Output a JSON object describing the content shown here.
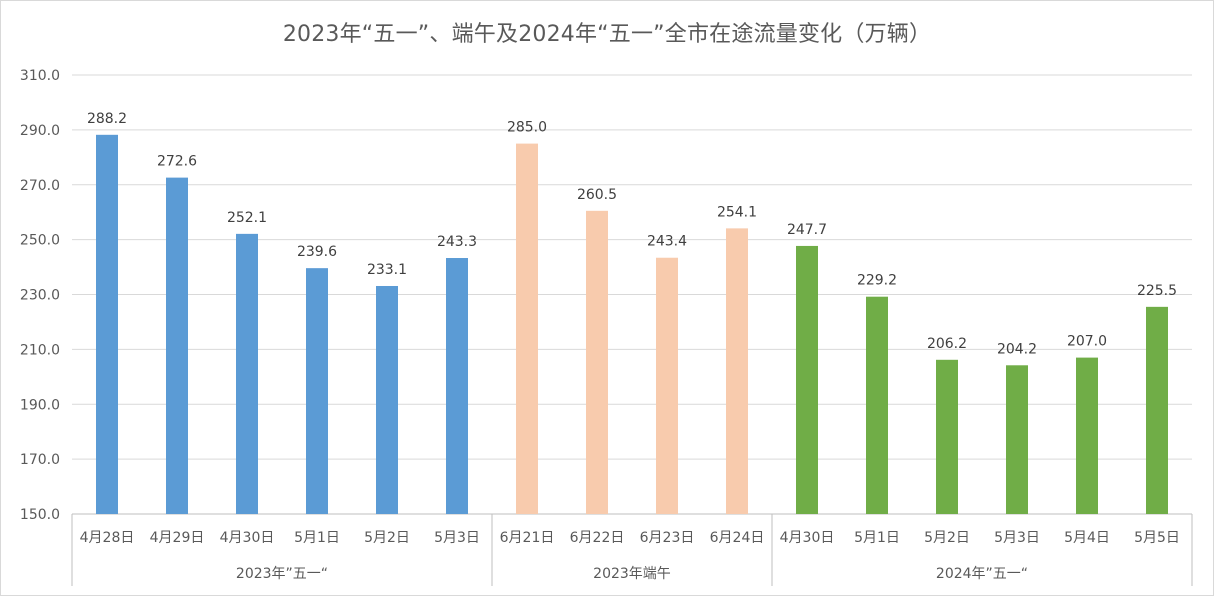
{
  "chart_data": {
    "type": "bar",
    "title": "2023年“五一”、端午及2024年“五一”全市在途流量变化（万辆）",
    "xlabel": "",
    "ylabel": "",
    "ylim": [
      150,
      310
    ],
    "yticks": [
      "150.0",
      "170.0",
      "190.0",
      "210.0",
      "230.0",
      "250.0",
      "270.0",
      "290.0",
      "310.0"
    ],
    "ytick_values": [
      150,
      170,
      190,
      210,
      230,
      250,
      270,
      290,
      310
    ],
    "grid": true,
    "legend": "none",
    "groups": [
      {
        "name": "2023年”五一“",
        "color": "#5b9bd5",
        "categories": [
          "4月28日",
          "4月29日",
          "4月30日",
          "5月1日",
          "5月2日",
          "5月3日"
        ],
        "values": [
          288.2,
          272.6,
          252.1,
          239.6,
          233.1,
          243.3
        ],
        "labels": [
          "288.2",
          "272.6",
          "252.1",
          "239.6",
          "233.1",
          "243.3"
        ]
      },
      {
        "name": "2023年端午",
        "color": "#f8cbad",
        "categories": [
          "6月21日",
          "6月22日",
          "6月23日",
          "6月24日"
        ],
        "values": [
          285.0,
          260.5,
          243.4,
          254.1
        ],
        "labels": [
          "285.0",
          "260.5",
          "243.4",
          "254.1"
        ]
      },
      {
        "name": "2024年”五一“",
        "color": "#70ad47",
        "categories": [
          "4月30日",
          "5月1日",
          "5月2日",
          "5月3日",
          "5月4日",
          "5月5日"
        ],
        "values": [
          247.7,
          229.2,
          206.2,
          204.2,
          207.0,
          225.5
        ],
        "labels": [
          "247.7",
          "229.2",
          "206.2",
          "204.2",
          "207.0",
          "225.5"
        ]
      }
    ]
  }
}
